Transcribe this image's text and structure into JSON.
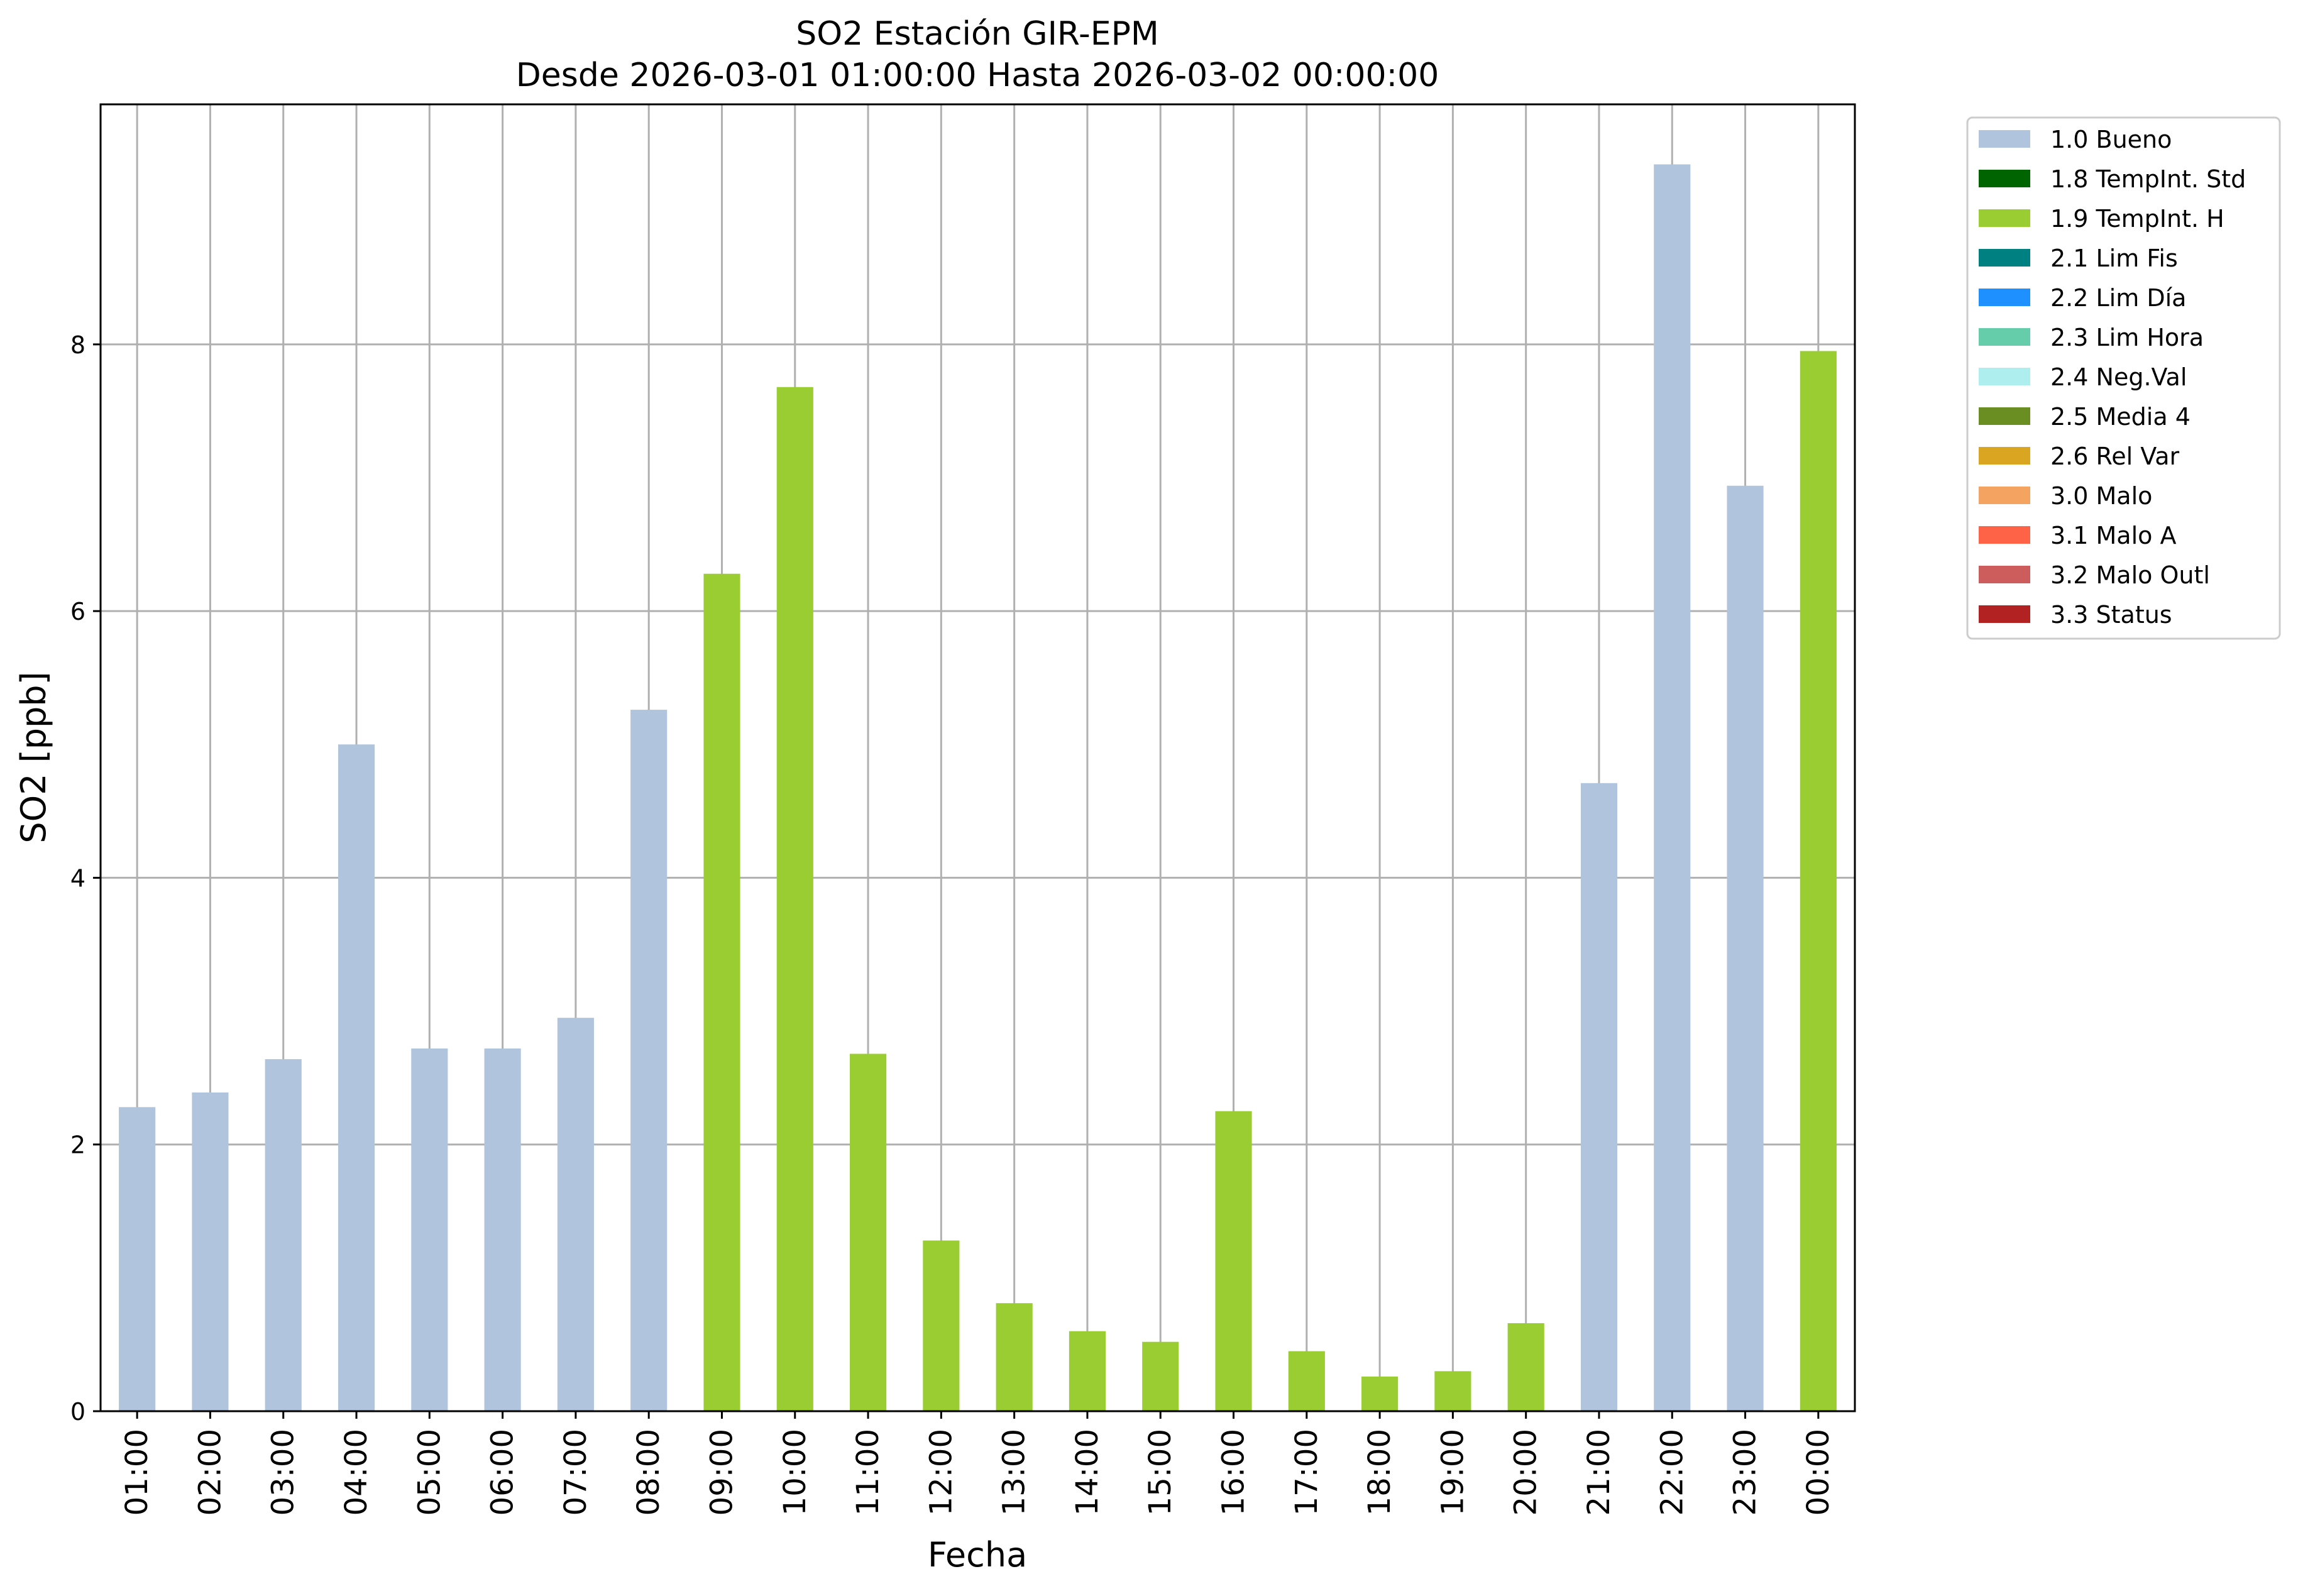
{
  "chart_data": {
    "type": "bar",
    "title": "SO2 Estación GIR-EPM",
    "subtitle": "Desde 2026-03-01 01:00:00 Hasta 2026-03-02 00:00:00",
    "xlabel": "Fecha",
    "ylabel": "SO2 [ppb]",
    "ylim": [
      0,
      9.8
    ],
    "yticks": [
      0,
      2,
      4,
      6,
      8
    ],
    "grid": true,
    "legend_position": "outside-right",
    "categories": [
      "01:00",
      "02:00",
      "03:00",
      "04:00",
      "05:00",
      "06:00",
      "07:00",
      "08:00",
      "09:00",
      "10:00",
      "11:00",
      "12:00",
      "13:00",
      "14:00",
      "15:00",
      "16:00",
      "17:00",
      "18:00",
      "19:00",
      "20:00",
      "21:00",
      "22:00",
      "23:00",
      "00:00"
    ],
    "values": [
      2.28,
      2.39,
      2.64,
      5.0,
      2.72,
      2.72,
      2.95,
      5.26,
      6.28,
      7.68,
      2.68,
      1.28,
      0.81,
      0.6,
      0.52,
      2.25,
      0.45,
      0.26,
      0.3,
      0.66,
      4.71,
      9.35,
      6.94,
      7.95
    ],
    "flags": [
      "1.0 Bueno",
      "1.0 Bueno",
      "1.0 Bueno",
      "1.0 Bueno",
      "1.0 Bueno",
      "1.0 Bueno",
      "1.0 Bueno",
      "1.0 Bueno",
      "1.9 TempInt. H",
      "1.9 TempInt. H",
      "1.9 TempInt. H",
      "1.9 TempInt. H",
      "1.9 TempInt. H",
      "1.9 TempInt. H",
      "1.9 TempInt. H",
      "1.9 TempInt. H",
      "1.9 TempInt. H",
      "1.9 TempInt. H",
      "1.9 TempInt. H",
      "1.9 TempInt. H",
      "1.0 Bueno",
      "1.0 Bueno",
      "1.0 Bueno",
      "1.9 TempInt. H"
    ],
    "legend": [
      {
        "label": "1.0 Bueno",
        "color": "#b0c4de"
      },
      {
        "label": "1.8 TempInt. Std",
        "color": "#006400"
      },
      {
        "label": "1.9 TempInt. H",
        "color": "#9acd32"
      },
      {
        "label": "2.1 Lim Fis",
        "color": "#008080"
      },
      {
        "label": "2.2 Lim Día",
        "color": "#1e90ff"
      },
      {
        "label": "2.3 Lim Hora",
        "color": "#66cdaa"
      },
      {
        "label": "2.4 Neg.Val",
        "color": "#afeeee"
      },
      {
        "label": "2.5 Media 4",
        "color": "#6b8e23"
      },
      {
        "label": "2.6 Rel Var",
        "color": "#daa520"
      },
      {
        "label": "3.0 Malo",
        "color": "#f4a460"
      },
      {
        "label": "3.1 Malo A",
        "color": "#ff6347"
      },
      {
        "label": "3.2 Malo Outl",
        "color": "#cd5c5c"
      },
      {
        "label": "3.3 Status",
        "color": "#b22222"
      }
    ]
  }
}
